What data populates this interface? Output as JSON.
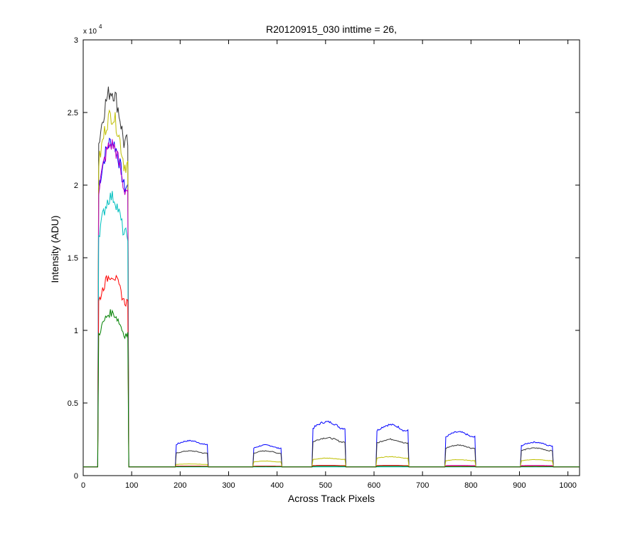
{
  "chart_data": {
    "type": "line",
    "title": "R20120915_030 inttime = 26,",
    "xlabel": "Across Track Pixels",
    "ylabel": "Intensity (ADU)",
    "xlim": [
      0,
      1024
    ],
    "ylim": [
      0,
      30000
    ],
    "y_multiplier_label": "x 10",
    "y_multiplier_exponent": "4",
    "x_ticks": [
      0,
      100,
      200,
      300,
      400,
      500,
      600,
      700,
      800,
      900,
      1000
    ],
    "x_tick_labels": [
      "0",
      "100",
      "200",
      "300",
      "400",
      "500",
      "600",
      "700",
      "800",
      "900",
      "1000"
    ],
    "y_ticks": [
      0,
      5000,
      10000,
      15000,
      20000,
      25000,
      30000
    ],
    "y_tick_labels": [
      "0",
      "0.5",
      "1",
      "1.5",
      "2",
      "2.5",
      "3"
    ],
    "grid": false,
    "baseline": 600,
    "segments": [
      {
        "start": 32,
        "end": 92
      },
      {
        "start": 192,
        "end": 256
      },
      {
        "start": 352,
        "end": 408
      },
      {
        "start": 474,
        "end": 540
      },
      {
        "start": 606,
        "end": 670
      },
      {
        "start": 748,
        "end": 808
      },
      {
        "start": 904,
        "end": 968
      }
    ],
    "series": [
      {
        "color": "#0000ff",
        "segment_peaks": [
          23000,
          2400,
          2100,
          3700,
          3500,
          3000,
          2300
        ]
      },
      {
        "color": "#333333",
        "segment_peaks": [
          26500,
          1700,
          1700,
          2600,
          2500,
          2100,
          1900
        ]
      },
      {
        "color": "#bfbf00",
        "segment_peaks": [
          24800,
          800,
          1000,
          1200,
          1300,
          1100,
          1100
        ]
      },
      {
        "color": "#bf00bf",
        "segment_peaks": [
          22800,
          650,
          650,
          700,
          700,
          700,
          700
        ]
      },
      {
        "color": "#00bfbf",
        "segment_peaks": [
          19200,
          600,
          600,
          600,
          600,
          600,
          600
        ]
      },
      {
        "color": "#ff0000",
        "segment_peaks": [
          13800,
          650,
          650,
          700,
          700,
          650,
          650
        ]
      },
      {
        "color": "#008000",
        "segment_peaks": [
          11200,
          620,
          620,
          650,
          650,
          620,
          620
        ]
      }
    ]
  }
}
